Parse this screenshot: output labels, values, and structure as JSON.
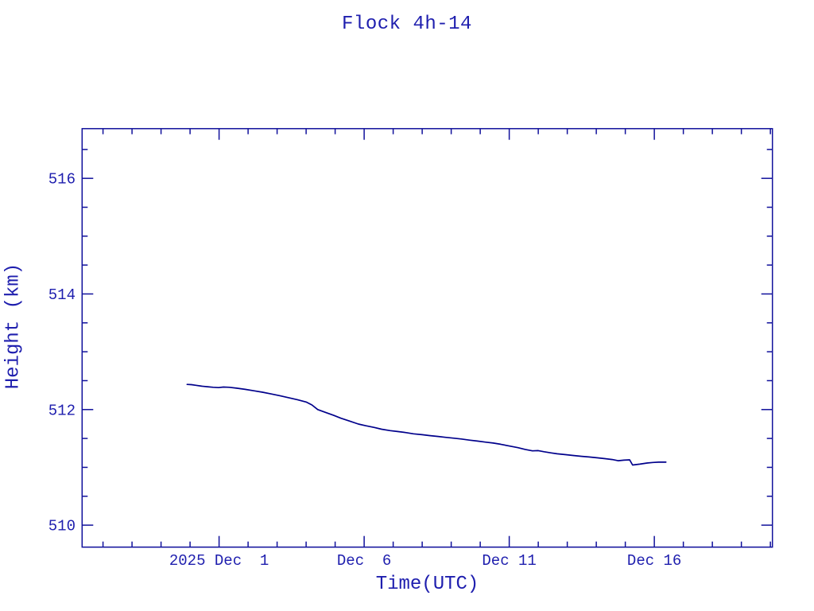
{
  "page": {
    "background": "#ffffff"
  },
  "chart_data": {
    "type": "line",
    "title": "Flock 4h-14",
    "xlabel": "Time(UTC)",
    "ylabel": "Height (km)",
    "grid": "off",
    "legend": "none",
    "colors": {
      "line": "#00008b",
      "frame": "#10109b",
      "text": "#1e1eae"
    },
    "x_unit": "days relative to 2025 Dec 1 00:00 UTC",
    "xlim": [
      -4.72,
      19.07
    ],
    "ylim": [
      509.62,
      516.86
    ],
    "x_major_ticks": [
      {
        "t": 0,
        "label": "2025 Dec  1"
      },
      {
        "t": 5,
        "label": "Dec  6"
      },
      {
        "t": 10,
        "label": "Dec 11"
      },
      {
        "t": 15,
        "label": "Dec 16"
      }
    ],
    "x_minor_ticks": [
      -4,
      -3,
      -2,
      -1,
      1,
      2,
      3,
      4,
      6,
      7,
      8,
      9,
      11,
      12,
      13,
      14,
      16,
      17,
      18,
      19
    ],
    "y_major_ticks": [
      {
        "v": 510,
        "label": "510"
      },
      {
        "v": 512,
        "label": "512"
      },
      {
        "v": 514,
        "label": "514"
      },
      {
        "v": 516,
        "label": "516"
      }
    ],
    "y_minor_ticks": [
      510.5,
      511.0,
      511.5,
      512.5,
      513.0,
      513.5,
      514.5,
      515.0,
      515.5,
      516.5
    ],
    "series": [
      {
        "name": "height",
        "points": [
          [
            -1.1,
            512.435
          ],
          [
            -0.95,
            512.43
          ],
          [
            -0.8,
            512.42
          ],
          [
            -0.6,
            512.405
          ],
          [
            -0.4,
            512.395
          ],
          [
            -0.2,
            512.385
          ],
          [
            -0.02,
            512.38
          ],
          [
            0.15,
            512.39
          ],
          [
            0.35,
            512.385
          ],
          [
            0.6,
            512.37
          ],
          [
            0.9,
            512.35
          ],
          [
            1.2,
            512.325
          ],
          [
            1.5,
            512.3
          ],
          [
            1.8,
            512.27
          ],
          [
            2.1,
            512.24
          ],
          [
            2.4,
            512.205
          ],
          [
            2.7,
            512.17
          ],
          [
            3.0,
            512.13
          ],
          [
            3.2,
            512.08
          ],
          [
            3.4,
            512.0
          ],
          [
            3.7,
            511.945
          ],
          [
            3.95,
            511.9
          ],
          [
            4.2,
            511.85
          ],
          [
            4.5,
            511.8
          ],
          [
            4.8,
            511.75
          ],
          [
            5.05,
            511.72
          ],
          [
            5.35,
            511.69
          ],
          [
            5.6,
            511.66
          ],
          [
            5.9,
            511.635
          ],
          [
            6.15,
            511.62
          ],
          [
            6.45,
            511.6
          ],
          [
            6.7,
            511.58
          ],
          [
            7.0,
            511.565
          ],
          [
            7.25,
            511.55
          ],
          [
            7.55,
            511.535
          ],
          [
            7.8,
            511.52
          ],
          [
            8.1,
            511.505
          ],
          [
            8.35,
            511.49
          ],
          [
            8.65,
            511.47
          ],
          [
            8.9,
            511.455
          ],
          [
            9.2,
            511.435
          ],
          [
            9.45,
            511.42
          ],
          [
            9.7,
            511.4
          ],
          [
            10.0,
            511.37
          ],
          [
            10.3,
            511.34
          ],
          [
            10.55,
            511.31
          ],
          [
            10.8,
            511.285
          ],
          [
            11.0,
            511.29
          ],
          [
            11.2,
            511.27
          ],
          [
            11.45,
            511.25
          ],
          [
            11.65,
            511.235
          ],
          [
            11.95,
            511.22
          ],
          [
            12.2,
            511.205
          ],
          [
            12.5,
            511.19
          ],
          [
            12.75,
            511.18
          ],
          [
            13.05,
            511.165
          ],
          [
            13.3,
            511.15
          ],
          [
            13.55,
            511.135
          ],
          [
            13.75,
            511.115
          ],
          [
            13.95,
            511.125
          ],
          [
            14.15,
            511.13
          ],
          [
            14.25,
            511.04
          ],
          [
            14.5,
            511.055
          ],
          [
            14.75,
            511.075
          ],
          [
            14.95,
            511.085
          ],
          [
            15.15,
            511.09
          ],
          [
            15.4,
            511.09
          ]
        ]
      }
    ]
  }
}
